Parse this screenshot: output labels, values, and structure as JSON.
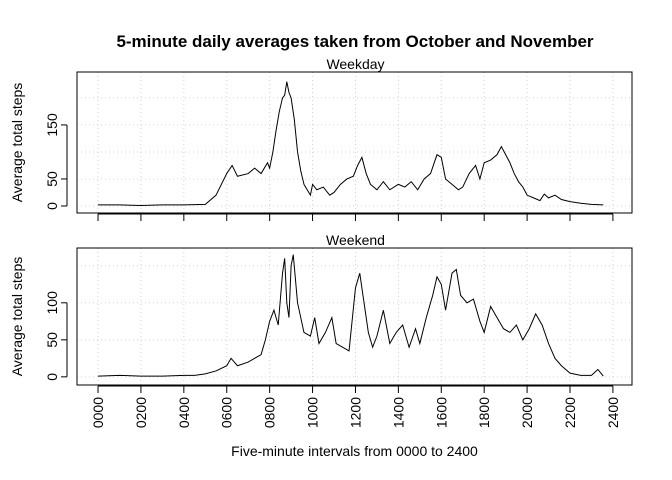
{
  "title": "5-minute daily averages taken from October and November",
  "chart_data": [
    {
      "type": "line",
      "title": "Weekday",
      "y_label": "Average total steps",
      "x": [
        0,
        100,
        200,
        300,
        400,
        500,
        550,
        600,
        625,
        650,
        700,
        730,
        760,
        790,
        800,
        815,
        830,
        845,
        860,
        870,
        880,
        890,
        900,
        915,
        930,
        945,
        960,
        975,
        990,
        1000,
        1020,
        1050,
        1080,
        1100,
        1130,
        1160,
        1190,
        1210,
        1230,
        1250,
        1270,
        1300,
        1330,
        1360,
        1400,
        1430,
        1460,
        1490,
        1520,
        1550,
        1580,
        1600,
        1620,
        1650,
        1680,
        1700,
        1730,
        1760,
        1780,
        1800,
        1830,
        1860,
        1880,
        1900,
        1920,
        1940,
        1960,
        1980,
        2000,
        2030,
        2060,
        2080,
        2100,
        2130,
        2160,
        2200,
        2250,
        2300,
        2355
      ],
      "series": [
        {
          "name": "Weekday",
          "color": "#000000",
          "values": [
            2,
            2,
            1,
            2,
            2,
            3,
            20,
            60,
            75,
            55,
            60,
            70,
            60,
            80,
            70,
            100,
            140,
            175,
            200,
            205,
            230,
            210,
            200,
            160,
            100,
            65,
            40,
            30,
            20,
            40,
            30,
            35,
            20,
            25,
            40,
            50,
            55,
            75,
            90,
            60,
            40,
            30,
            45,
            30,
            40,
            35,
            45,
            30,
            50,
            60,
            95,
            90,
            50,
            40,
            30,
            35,
            60,
            75,
            50,
            80,
            85,
            95,
            110,
            95,
            80,
            60,
            45,
            35,
            20,
            15,
            10,
            22,
            15,
            20,
            12,
            8,
            5,
            3,
            2
          ]
        }
      ],
      "xlim": [
        -98,
        2489
      ],
      "ylim": [
        -13,
        248
      ],
      "xticks": [
        {
          "value": 0,
          "label": "0000"
        },
        {
          "value": 200,
          "label": "0200"
        },
        {
          "value": 400,
          "label": "0400"
        },
        {
          "value": 600,
          "label": "0600"
        },
        {
          "value": 800,
          "label": "0800"
        },
        {
          "value": 1000,
          "label": "1000"
        },
        {
          "value": 1200,
          "label": "1200"
        },
        {
          "value": 1400,
          "label": "1400"
        },
        {
          "value": 1600,
          "label": "1600"
        },
        {
          "value": 1800,
          "label": "1800"
        },
        {
          "value": 2000,
          "label": "2000"
        },
        {
          "value": 2200,
          "label": "2200"
        },
        {
          "value": 2400,
          "label": "2400"
        }
      ],
      "yticks": [
        0,
        50,
        150
      ],
      "gridlines": [
        0,
        50,
        100,
        150,
        200
      ],
      "grid": true
    },
    {
      "type": "line",
      "title": "Weekend",
      "y_label": "Average total steps",
      "x_label": "Five-minute intervals from 0000 to 2400",
      "x": [
        0,
        100,
        200,
        300,
        400,
        450,
        500,
        550,
        600,
        620,
        650,
        700,
        730,
        760,
        780,
        800,
        820,
        840,
        860,
        870,
        880,
        890,
        900,
        910,
        930,
        960,
        990,
        1010,
        1030,
        1060,
        1090,
        1110,
        1140,
        1170,
        1200,
        1220,
        1240,
        1260,
        1280,
        1300,
        1330,
        1360,
        1390,
        1420,
        1450,
        1480,
        1500,
        1530,
        1560,
        1580,
        1600,
        1620,
        1650,
        1670,
        1690,
        1720,
        1750,
        1780,
        1800,
        1830,
        1860,
        1890,
        1920,
        1950,
        1980,
        2010,
        2040,
        2070,
        2100,
        2130,
        2160,
        2200,
        2250,
        2300,
        2330,
        2355
      ],
      "series": [
        {
          "name": "Weekend",
          "color": "#000000",
          "values": [
            1,
            2,
            1,
            1,
            2,
            2,
            4,
            8,
            15,
            25,
            15,
            20,
            25,
            30,
            50,
            75,
            90,
            70,
            140,
            160,
            100,
            80,
            150,
            165,
            100,
            60,
            55,
            80,
            45,
            60,
            80,
            45,
            40,
            35,
            120,
            140,
            100,
            60,
            40,
            55,
            90,
            45,
            60,
            70,
            40,
            65,
            45,
            80,
            110,
            135,
            125,
            90,
            140,
            145,
            110,
            100,
            105,
            75,
            60,
            95,
            80,
            65,
            60,
            70,
            50,
            65,
            85,
            70,
            45,
            25,
            15,
            5,
            2,
            2,
            10,
            1
          ]
        }
      ],
      "xlim": [
        -98,
        2489
      ],
      "ylim": [
        -11,
        174
      ],
      "xticks": [
        {
          "value": 0,
          "label": "0000"
        },
        {
          "value": 200,
          "label": "0200"
        },
        {
          "value": 400,
          "label": "0400"
        },
        {
          "value": 600,
          "label": "0600"
        },
        {
          "value": 800,
          "label": "0800"
        },
        {
          "value": 1000,
          "label": "1000"
        },
        {
          "value": 1200,
          "label": "1200"
        },
        {
          "value": 1400,
          "label": "1400"
        },
        {
          "value": 1600,
          "label": "1600"
        },
        {
          "value": 1800,
          "label": "1800"
        },
        {
          "value": 2000,
          "label": "2000"
        },
        {
          "value": 2200,
          "label": "2200"
        },
        {
          "value": 2400,
          "label": "2400"
        }
      ],
      "yticks": [
        0,
        50,
        100
      ],
      "gridlines": [
        0,
        50,
        100,
        150
      ],
      "grid": true
    }
  ]
}
